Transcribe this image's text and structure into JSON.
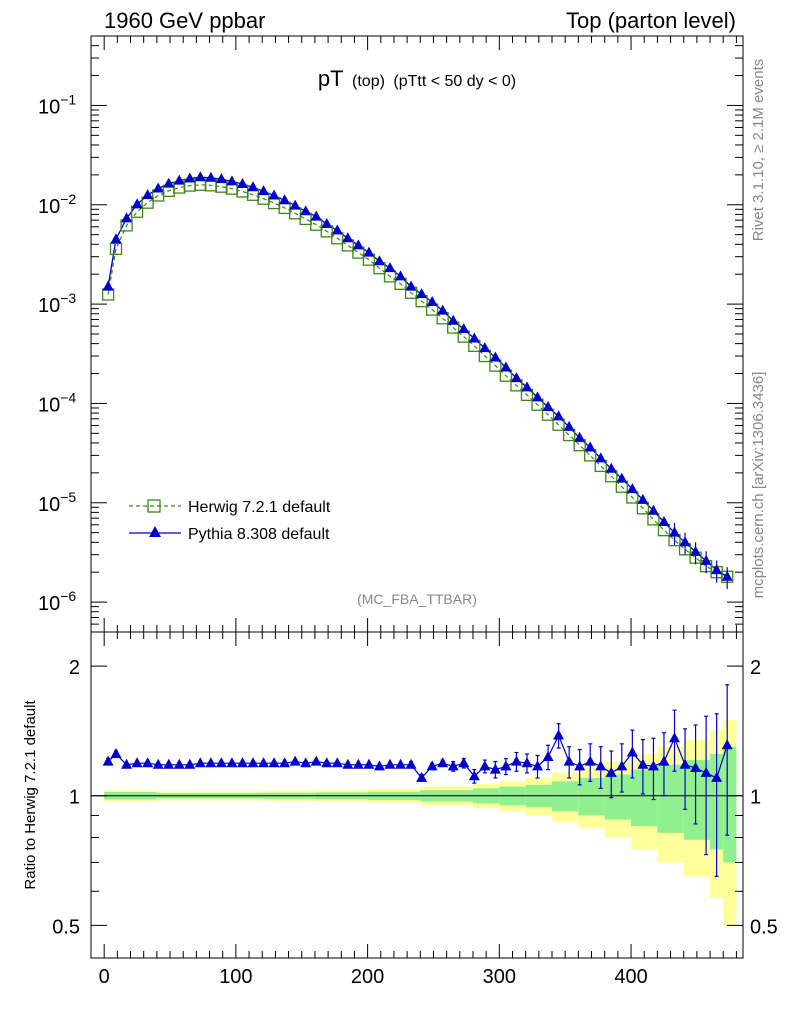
{
  "header": {
    "left": "1960 GeV ppbar",
    "right": "Top (parton level)"
  },
  "plot_title": {
    "main": "pT",
    "sub1": "(top)",
    "sub2": "(pTtt < 50 dy < 0)"
  },
  "side_text": {
    "rivet": "Rivet 3.1.10, ≥ 2.1M events",
    "mcplots": "mcplots.cern.ch [arXiv:1306.3436]"
  },
  "analysis_id": "(MC_FBA_TTBAR)",
  "ratio_ylabel": "Ratio to Herwig 7.2.1 default",
  "colors": {
    "herwig": "#3a8a14",
    "pythia": "#0000cc",
    "band_inner": "#90f090",
    "band_outer": "#ffff99"
  },
  "chart_data": [
    {
      "type": "line",
      "panel": "main",
      "yscale": "log",
      "xlim": [
        -10,
        485
      ],
      "ylim": [
        5e-07,
        0.5
      ],
      "yticks": [
        {
          "v": 0.1,
          "mant": "10",
          "exp": "−1"
        },
        {
          "v": 0.01,
          "mant": "10",
          "exp": "−2"
        },
        {
          "v": 0.001,
          "mant": "10",
          "exp": "−3"
        },
        {
          "v": 0.0001,
          "mant": "10",
          "exp": "−4"
        },
        {
          "v": 1e-05,
          "mant": "10",
          "exp": "−5"
        },
        {
          "v": 1e-06,
          "mant": "10",
          "exp": "−6"
        }
      ],
      "legend": {
        "position": "bottom-left"
      },
      "series": [
        {
          "name": "Herwig 7.2.1 default",
          "marker": "open-square",
          "x": [
            3,
            9,
            17,
            25,
            33,
            41,
            49,
            57,
            65,
            73,
            81,
            89,
            97,
            105,
            113,
            121,
            129,
            137,
            145,
            153,
            161,
            169,
            177,
            185,
            193,
            201,
            209,
            217,
            225,
            233,
            241,
            249,
            257,
            265,
            273,
            281,
            289,
            297,
            305,
            313,
            321,
            329,
            337,
            345,
            353,
            361,
            369,
            377,
            385,
            393,
            401,
            409,
            417,
            425,
            433,
            441,
            449,
            457,
            465,
            473
          ],
          "y": [
            0.00125,
            0.0036,
            0.0062,
            0.0085,
            0.0105,
            0.0124,
            0.0138,
            0.0149,
            0.0156,
            0.0159,
            0.0157,
            0.0152,
            0.0145,
            0.0136,
            0.0126,
            0.0115,
            0.0104,
            0.0093,
            0.0082,
            0.0072,
            0.0063,
            0.0054,
            0.0046,
            0.0039,
            0.0033,
            0.0028,
            0.0023,
            0.0019,
            0.0016,
            0.0013,
            0.00107,
            0.00088,
            0.00072,
            0.00058,
            0.00047,
            0.00038,
            0.0003,
            0.00024,
            0.00019,
            0.000152,
            0.000122,
            9.7e-05,
            7.7e-05,
            6.1e-05,
            4.8e-05,
            3.8e-05,
            3e-05,
            2.35e-05,
            1.85e-05,
            1.45e-05,
            1.13e-05,
            8.8e-06,
            6.8e-06,
            5.3e-06,
            4.2e-06,
            3.4e-06,
            2.8e-06,
            2.3e-06,
            2e-06,
            1.8e-06
          ]
        },
        {
          "name": "Pythia 8.308 default",
          "marker": "filled-triangle",
          "x": [
            3,
            9,
            17,
            25,
            33,
            41,
            49,
            57,
            65,
            73,
            81,
            89,
            97,
            105,
            113,
            121,
            129,
            137,
            145,
            153,
            161,
            169,
            177,
            185,
            193,
            201,
            209,
            217,
            225,
            233,
            241,
            249,
            257,
            265,
            273,
            281,
            289,
            297,
            305,
            313,
            321,
            329,
            337,
            345,
            353,
            361,
            369,
            377,
            385,
            393,
            401,
            409,
            417,
            425,
            433,
            441,
            449,
            457,
            465,
            473
          ],
          "y": [
            0.0015,
            0.0045,
            0.0073,
            0.0101,
            0.0125,
            0.0146,
            0.0163,
            0.0175,
            0.0184,
            0.0189,
            0.0187,
            0.0181,
            0.0172,
            0.0162,
            0.015,
            0.0137,
            0.0124,
            0.0111,
            0.0098,
            0.0086,
            0.0076,
            0.0064,
            0.0055,
            0.0046,
            0.0039,
            0.0033,
            0.0027,
            0.0023,
            0.0019,
            0.0015,
            0.00126,
            0.00105,
            0.00086,
            0.00068,
            0.00056,
            0.00045,
            0.00036,
            0.00029,
            0.00023,
            0.00018,
            0.000145,
            0.000115,
            9.2e-05,
            7.4e-05,
            5.8e-05,
            4.5e-05,
            3.6e-05,
            2.8e-05,
            2.2e-05,
            1.75e-05,
            1.37e-05,
            1.07e-05,
            8.3e-06,
            6.4e-06,
            5e-06,
            4e-06,
            3.2e-06,
            2.6e-06,
            2.1e-06,
            1.8e-06
          ]
        }
      ]
    },
    {
      "type": "line",
      "panel": "ratio",
      "yscale": "log",
      "xlim": [
        -10,
        485
      ],
      "ylim": [
        0.42,
        2.4
      ],
      "xticks": [
        0,
        100,
        200,
        300,
        400
      ],
      "yticks": [
        0.5,
        1,
        2
      ],
      "ylabel": "Ratio to Herwig 7.2.1 default",
      "reference_line": 1,
      "series": [
        {
          "name": "Pythia 8.308 default",
          "x": [
            3,
            9,
            17,
            25,
            33,
            41,
            49,
            57,
            65,
            73,
            81,
            89,
            97,
            105,
            113,
            121,
            129,
            137,
            145,
            153,
            161,
            169,
            177,
            185,
            193,
            201,
            209,
            217,
            225,
            233,
            241,
            249,
            257,
            265,
            273,
            281,
            289,
            297,
            305,
            313,
            321,
            329,
            337,
            345,
            353,
            361,
            369,
            377,
            385,
            393,
            401,
            409,
            417,
            425,
            433,
            441,
            449,
            457,
            465,
            473
          ],
          "y": [
            1.2,
            1.25,
            1.18,
            1.19,
            1.19,
            1.18,
            1.18,
            1.18,
            1.18,
            1.19,
            1.19,
            1.19,
            1.19,
            1.19,
            1.19,
            1.19,
            1.19,
            1.19,
            1.2,
            1.19,
            1.2,
            1.19,
            1.19,
            1.18,
            1.18,
            1.18,
            1.17,
            1.18,
            1.18,
            1.18,
            1.1,
            1.17,
            1.19,
            1.17,
            1.19,
            1.11,
            1.17,
            1.15,
            1.17,
            1.2,
            1.19,
            1.17,
            1.23,
            1.38,
            1.2,
            1.17,
            1.2,
            1.17,
            1.13,
            1.17,
            1.26,
            1.18,
            1.17,
            1.2,
            1.36,
            1.18,
            1.16,
            1.13,
            1.1,
            1.31
          ],
          "yerr": [
            0.02,
            0.02,
            0.01,
            0.01,
            0.01,
            0.01,
            0.01,
            0.01,
            0.01,
            0.01,
            0.01,
            0.01,
            0.01,
            0.01,
            0.01,
            0.01,
            0.01,
            0.01,
            0.01,
            0.01,
            0.01,
            0.01,
            0.01,
            0.01,
            0.01,
            0.01,
            0.01,
            0.01,
            0.01,
            0.02,
            0.02,
            0.02,
            0.02,
            0.03,
            0.03,
            0.04,
            0.04,
            0.05,
            0.05,
            0.06,
            0.06,
            0.07,
            0.08,
            0.09,
            0.1,
            0.11,
            0.12,
            0.13,
            0.14,
            0.15,
            0.16,
            0.17,
            0.19,
            0.2,
            0.22,
            0.25,
            0.3,
            0.4,
            0.45,
            0.5
          ]
        }
      ],
      "band": {
        "x_edges": [
          0,
          40,
          80,
          120,
          160,
          200,
          240,
          280,
          300,
          320,
          340,
          360,
          380,
          400,
          420,
          440,
          460,
          470,
          480
        ],
        "inner": [
          0.02,
          0.015,
          0.015,
          0.016,
          0.018,
          0.022,
          0.03,
          0.04,
          0.05,
          0.06,
          0.08,
          0.1,
          0.12,
          0.15,
          0.18,
          0.21,
          0.25,
          0.3
        ],
        "outer": [
          0.03,
          0.025,
          0.025,
          0.027,
          0.03,
          0.036,
          0.05,
          0.065,
          0.08,
          0.1,
          0.13,
          0.16,
          0.2,
          0.25,
          0.3,
          0.35,
          0.42,
          0.5
        ]
      }
    }
  ]
}
